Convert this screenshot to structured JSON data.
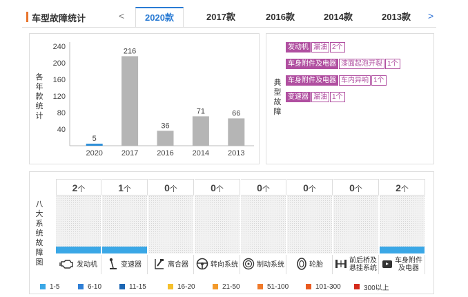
{
  "header": {
    "title": "车型故障统计",
    "prev_symbol": "<",
    "next_symbol": ">",
    "tabs": [
      {
        "label": "2020款",
        "active": true
      },
      {
        "label": "2017款",
        "active": false
      },
      {
        "label": "2016款",
        "active": false
      },
      {
        "label": "2014款",
        "active": false
      },
      {
        "label": "2013款",
        "active": false
      }
    ]
  },
  "chart_data": {
    "type": "bar",
    "categories": [
      "2020",
      "2017",
      "2016",
      "2014",
      "2013"
    ],
    "values": [
      5,
      216,
      36,
      71,
      66
    ],
    "ylabel": "各年款统计",
    "ylim": [
      0,
      240
    ],
    "yticks": [
      40,
      80,
      120,
      160,
      200,
      240
    ],
    "highlight_category": "2020",
    "colors": {
      "highlight": "#2e8fd8",
      "default": "#b5b5b5"
    }
  },
  "typical": {
    "label": "典型故障",
    "issues": [
      {
        "category": "发动机",
        "keyword": "漏油",
        "count": "2个"
      },
      {
        "category": "车身附件及电器",
        "keyword": "漆面起泡开裂",
        "count": "1个"
      },
      {
        "category": "车身附件及电器",
        "keyword": "车内异响",
        "count": "1个"
      },
      {
        "category": "变速器",
        "keyword": "漏油",
        "count": "1个"
      }
    ]
  },
  "systems": {
    "label": "八大系统故障图",
    "unit": "个",
    "items": [
      {
        "name": "发动机",
        "count": "2",
        "level": 1,
        "icon": "engine-icon"
      },
      {
        "name": "变速器",
        "count": "1",
        "level": 1,
        "icon": "gearshift-icon"
      },
      {
        "name": "离合器",
        "count": "0",
        "level": 0,
        "icon": "clutch-pedal-icon"
      },
      {
        "name": "转向系统",
        "count": "0",
        "level": 0,
        "icon": "steering-wheel-icon"
      },
      {
        "name": "制动系统",
        "count": "0",
        "level": 0,
        "icon": "brake-disc-icon"
      },
      {
        "name": "轮胎",
        "count": "0",
        "level": 0,
        "icon": "tire-icon"
      },
      {
        "name": "前后桥及悬挂系统",
        "count": "0",
        "level": 0,
        "icon": "axle-icon"
      },
      {
        "name": "车身附件及电器",
        "count": "2",
        "level": 1,
        "icon": "car-body-icon"
      }
    ]
  },
  "legend": [
    {
      "label": "1-5",
      "color": "#3aa7e6"
    },
    {
      "label": "6-10",
      "color": "#2f7fd6"
    },
    {
      "label": "11-15",
      "color": "#1b66b3"
    },
    {
      "label": "16-20",
      "color": "#f5c02c"
    },
    {
      "label": "21-50",
      "color": "#f39a2b"
    },
    {
      "label": "51-100",
      "color": "#f07a2a"
    },
    {
      "label": "101-300",
      "color": "#ea5a1f"
    },
    {
      "label": "300以上",
      "color": "#d42a1a"
    }
  ]
}
